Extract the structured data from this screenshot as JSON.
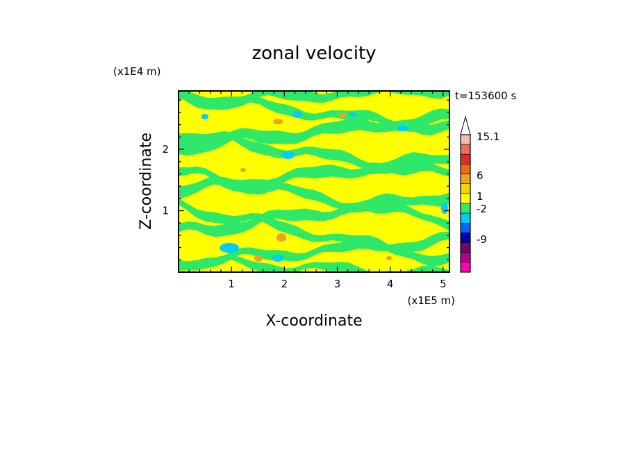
{
  "chart_data": {
    "type": "heatmap",
    "title": "zonal velocity",
    "time_label": "t=153600 s",
    "xlabel": "X-coordinate",
    "ylabel": "Z-coordinate",
    "x_scale_label": "(x1E5 m)",
    "y_scale_label": "(x1E4 m)",
    "xlim": [
      0,
      5.12
    ],
    "ylim": [
      0,
      2.95
    ],
    "x_ticks": [
      1,
      2,
      3,
      4,
      5
    ],
    "y_ticks": [
      1,
      2
    ],
    "x_tick_labels": [
      "1",
      "2",
      "3",
      "4",
      "5"
    ],
    "y_tick_labels": [
      "1",
      "2"
    ],
    "colorbar": {
      "labels": [
        "15.1",
        "6",
        "1",
        "-2",
        "-9"
      ],
      "colors": [
        "#ffffff",
        "#f7b8b8",
        "#ee6a5c",
        "#e82828",
        "#ee6a10",
        "#f2a020",
        "#f0d800",
        "#ffff00",
        "#2ee86a",
        "#00ccff",
        "#0064ff",
        "#0000a8",
        "#780078",
        "#b4008c",
        "#ff00b4"
      ]
    },
    "dominant_colors": {
      "positive_weak": "#ffff00",
      "near_zero": "#2ee86a",
      "negative": "#00ccff",
      "positive_strong": "#f2a020"
    }
  }
}
